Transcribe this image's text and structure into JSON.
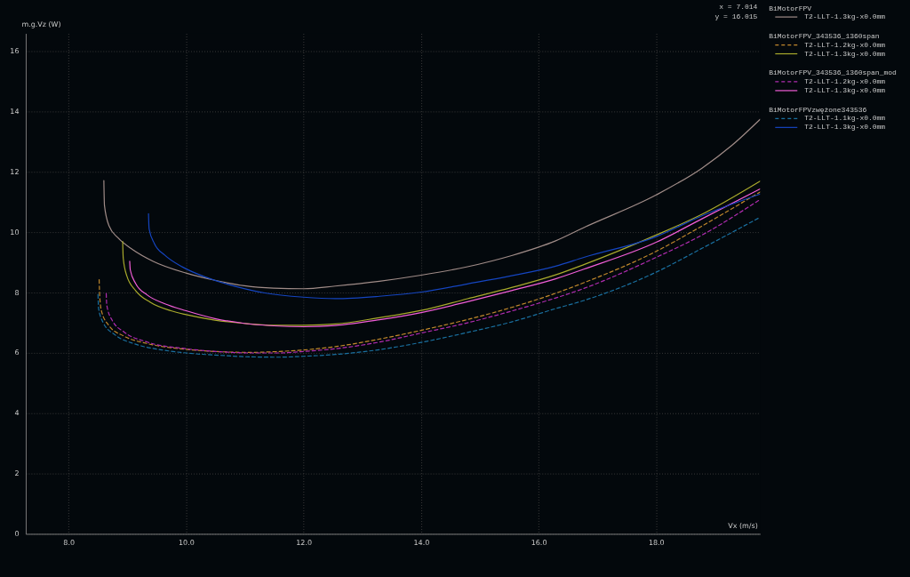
{
  "chart_data": {
    "type": "line",
    "xlabel": "Vx (m/s)",
    "ylabel": "m.g.Vz (W)",
    "xlim": [
      7.27,
      19.77
    ],
    "ylim": [
      0,
      16.6
    ],
    "xticks": [
      {
        "value": 8,
        "label": "8.0"
      },
      {
        "value": 10,
        "label": "10.0"
      },
      {
        "value": 12,
        "label": "12.0"
      },
      {
        "value": 14,
        "label": "14.0"
      },
      {
        "value": 16,
        "label": "16.0"
      },
      {
        "value": 18,
        "label": "18.0"
      }
    ],
    "yticks": [
      0,
      2,
      4,
      6,
      8,
      10,
      12,
      14,
      16
    ],
    "grid": true,
    "legend": "right",
    "line_style": "solid",
    "annotations": [
      "BiMotorFPV",
      "BiMotorFPV_343536_1360span",
      "BiMotorFPV_343536_1360span_mod",
      "BiMotorFPVzwężone343536",
      "x = 7.014",
      "y = 16.015"
    ],
    "series": [
      {
        "name": "T2-LLT-1.3kg-x0.0mm",
        "color": "#a08c88",
        "x": [
          8.6,
          8.61,
          8.69,
          8.84,
          9.09,
          9.44,
          10.0,
          10.49,
          10.99,
          11.49,
          12.0,
          12.54,
          13.29,
          14.0,
          14.79,
          15.54,
          16.29,
          16.77,
          18.0,
          18.78,
          19.28,
          19.77
        ],
        "values": [
          11.72,
          10.9,
          10.21,
          9.82,
          9.43,
          9.04,
          8.65,
          8.41,
          8.23,
          8.15,
          8.13,
          8.22,
          8.38,
          8.58,
          8.86,
          9.23,
          9.72,
          10.16,
          11.24,
          12.13,
          12.87,
          13.75
        ]
      },
      {
        "name": "T2-LLT-1.2kg-x0.0mm",
        "color": "#c0882c",
        "line_style": "dashed",
        "x": [
          8.52,
          8.53,
          8.56,
          8.69,
          8.94,
          9.34,
          10.0,
          10.59,
          11.09,
          11.59,
          12.0,
          12.54,
          13.29,
          14.0,
          14.79,
          15.54,
          16.29,
          16.77,
          18.0,
          18.78,
          19.77
        ],
        "values": [
          8.43,
          7.87,
          7.39,
          6.9,
          6.56,
          6.31,
          6.12,
          6.04,
          6.02,
          6.05,
          6.1,
          6.21,
          6.46,
          6.75,
          7.11,
          7.51,
          7.98,
          8.33,
          9.37,
          10.21,
          11.34
        ]
      },
      {
        "name": "T2-LLT-1.3kg-x0.0mm",
        "color": "#a9aa2c",
        "x": [
          8.92,
          8.93,
          8.99,
          9.14,
          9.39,
          9.74,
          10.0,
          10.49,
          10.99,
          11.49,
          12.0,
          12.54,
          13.29,
          14.0,
          14.79,
          15.54,
          16.29,
          16.77,
          18.0,
          18.78,
          19.77
        ],
        "values": [
          9.7,
          9.14,
          8.56,
          8.07,
          7.68,
          7.4,
          7.27,
          7.09,
          6.98,
          6.92,
          6.92,
          6.96,
          7.17,
          7.41,
          7.8,
          8.17,
          8.59,
          8.93,
          9.91,
          10.6,
          11.7
        ]
      },
      {
        "name": "T2-LLT-1.2kg-x0.0mm",
        "color": "#b02cb0",
        "line_style": "dashed",
        "x": [
          8.64,
          8.65,
          8.74,
          8.94,
          9.34,
          10.0,
          10.59,
          11.09,
          11.59,
          12.0,
          12.54,
          13.29,
          14.0,
          14.79,
          15.54,
          16.0,
          16.77,
          18.0,
          18.78,
          19.77
        ],
        "values": [
          7.97,
          7.58,
          7.09,
          6.7,
          6.36,
          6.14,
          6.04,
          6.0,
          6.0,
          6.05,
          6.14,
          6.36,
          6.66,
          7.0,
          7.39,
          7.65,
          8.14,
          9.17,
          9.91,
          11.09
        ]
      },
      {
        "name": "T2-LLT-1.3kg-x0.0mm",
        "color": "#f25ed8",
        "x": [
          9.04,
          9.05,
          9.14,
          9.34,
          9.64,
          10.0,
          10.49,
          10.99,
          11.49,
          12.0,
          12.54,
          13.29,
          14.0,
          14.79,
          15.54,
          16.29,
          16.77,
          18.0,
          18.78,
          19.77
        ],
        "values": [
          9.04,
          8.75,
          8.31,
          7.92,
          7.63,
          7.4,
          7.14,
          6.98,
          6.9,
          6.87,
          6.91,
          7.1,
          7.34,
          7.7,
          8.07,
          8.46,
          8.78,
          9.67,
          10.45,
          11.44
        ]
      },
      {
        "name": "T2-LLT-1.1kg-x0.0mm",
        "color": "#1a70a0",
        "line_style": "dashed",
        "x": [
          8.5,
          8.51,
          8.59,
          8.79,
          9.14,
          9.59,
          10.0,
          10.59,
          11.09,
          11.59,
          12.0,
          12.54,
          13.29,
          14.0,
          14.79,
          15.54,
          16.29,
          16.77,
          18.0,
          18.78,
          19.77
        ],
        "values": [
          7.94,
          7.48,
          7.0,
          6.6,
          6.29,
          6.1,
          6.0,
          5.92,
          5.87,
          5.86,
          5.89,
          5.95,
          6.11,
          6.35,
          6.68,
          7.03,
          7.47,
          7.74,
          8.68,
          9.47,
          10.5
        ]
      },
      {
        "name": "T2-LLT-1.3kg-x0.0mm",
        "color": "#1545c0",
        "x": [
          9.36,
          9.37,
          9.46,
          9.64,
          9.94,
          10.34,
          10.84,
          11.34,
          12.0,
          12.54,
          13.29,
          14.0,
          14.79,
          15.54,
          16.29,
          16.77,
          18.0,
          18.78,
          19.77
        ],
        "values": [
          10.62,
          10.12,
          9.63,
          9.24,
          8.85,
          8.51,
          8.21,
          7.99,
          7.85,
          7.8,
          7.88,
          8.02,
          8.29,
          8.56,
          8.88,
          9.17,
          9.86,
          10.55,
          11.27
        ]
      }
    ]
  }
}
